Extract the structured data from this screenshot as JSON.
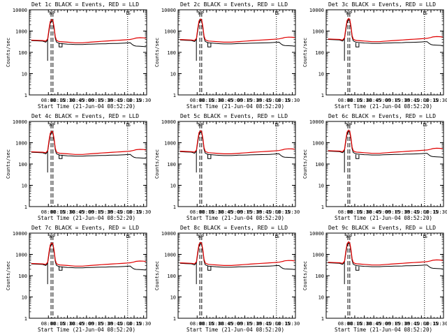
{
  "figure_title": "",
  "colors": {
    "events": "#000000",
    "lld": "#e00000",
    "axes": "#000000",
    "background": "#ffffff"
  },
  "chart_data": [
    {
      "type": "line",
      "title": "Det 1c BLACK = Events, RED = LLD",
      "xlabel": "Start Time (21-Jun-04 08:52:20)",
      "ylabel": "Counts/sec",
      "yscale": "log",
      "ylim": [
        1,
        10000
      ],
      "xlim": [
        7.5,
        10.58
      ],
      "xticks": [
        "08:00",
        "08:15",
        "08:30",
        "08:45",
        "09:00",
        "09:15",
        "09:30",
        "09:45",
        "10:00",
        "10:15",
        "10:30"
      ],
      "yticks": [
        "1",
        "10",
        "100",
        "1000",
        "10000"
      ],
      "flag_labels": [
        "N",
        "P",
        "D",
        "S"
      ],
      "series": [
        {
          "name": "Events",
          "color": "#000000"
        },
        {
          "name": "LLD",
          "color": "#e00000"
        }
      ]
    },
    {
      "type": "line",
      "title": "Det 2c BLACK = Events, RED = LLD",
      "xlabel": "Start Time (21-Jun-04 08:52:20)",
      "ylabel": "Counts/sec",
      "yscale": "log",
      "ylim": [
        1,
        10000
      ],
      "xlim": [
        7.5,
        10.58
      ],
      "xticks": [
        "08:00",
        "08:15",
        "08:30",
        "08:45",
        "09:00",
        "09:15",
        "09:30",
        "09:45",
        "10:00",
        "10:15",
        "10:30"
      ],
      "yticks": [
        "1",
        "10",
        "100",
        "1000",
        "10000"
      ],
      "flag_labels": [
        "N",
        "P",
        "D",
        "S"
      ],
      "series": [
        {
          "name": "Events",
          "color": "#000000"
        },
        {
          "name": "LLD",
          "color": "#e00000"
        }
      ]
    },
    {
      "type": "line",
      "title": "Det 3c BLACK = Events, RED = LLD",
      "xlabel": "Start Time (21-Jun-04 08:52:20)",
      "ylabel": "Counts/sec",
      "yscale": "log",
      "ylim": [
        1,
        10000
      ],
      "xlim": [
        7.5,
        10.58
      ],
      "xticks": [
        "08:00",
        "08:15",
        "08:30",
        "08:45",
        "09:00",
        "09:15",
        "09:30",
        "09:45",
        "10:00",
        "10:15",
        "10:30"
      ],
      "yticks": [
        "1",
        "10",
        "100",
        "1000",
        "10000"
      ],
      "flag_labels": [
        "N",
        "P",
        "D",
        "S"
      ],
      "series": [
        {
          "name": "Events",
          "color": "#000000"
        },
        {
          "name": "LLD",
          "color": "#e00000"
        }
      ]
    },
    {
      "type": "line",
      "title": "Det 4c BLACK = Events, RED = LLD",
      "xlabel": "Start Time (21-Jun-04 08:52:20)",
      "ylabel": "Counts/sec",
      "yscale": "log",
      "ylim": [
        1,
        10000
      ],
      "xlim": [
        7.5,
        10.58
      ],
      "xticks": [
        "08:00",
        "08:15",
        "08:30",
        "08:45",
        "09:00",
        "09:15",
        "09:30",
        "09:45",
        "10:00",
        "10:15",
        "10:30"
      ],
      "yticks": [
        "1",
        "10",
        "100",
        "1000",
        "10000"
      ],
      "flag_labels": [
        "N",
        "P",
        "D",
        "S"
      ],
      "series": [
        {
          "name": "Events",
          "color": "#000000"
        },
        {
          "name": "LLD",
          "color": "#e00000"
        }
      ]
    },
    {
      "type": "line",
      "title": "Det 5c BLACK = Events, RED = LLD",
      "xlabel": "Start Time (21-Jun-04 08:52:20)",
      "ylabel": "Counts/sec",
      "yscale": "log",
      "ylim": [
        1,
        10000
      ],
      "xlim": [
        7.5,
        10.58
      ],
      "xticks": [
        "08:00",
        "08:15",
        "08:30",
        "08:45",
        "09:00",
        "09:15",
        "09:30",
        "09:45",
        "10:00",
        "10:15",
        "10:30"
      ],
      "yticks": [
        "1",
        "10",
        "100",
        "1000",
        "10000"
      ],
      "flag_labels": [
        "N",
        "P",
        "D",
        "S"
      ],
      "series": [
        {
          "name": "Events",
          "color": "#000000"
        },
        {
          "name": "LLD",
          "color": "#e00000"
        }
      ]
    },
    {
      "type": "line",
      "title": "Det 6c BLACK = Events, RED = LLD",
      "xlabel": "Start Time (21-Jun-04 08:52:20)",
      "ylabel": "Counts/sec",
      "yscale": "log",
      "ylim": [
        1,
        10000
      ],
      "xlim": [
        7.5,
        10.58
      ],
      "xticks": [
        "08:00",
        "08:15",
        "08:30",
        "08:45",
        "09:00",
        "09:15",
        "09:30",
        "09:45",
        "10:00",
        "10:15",
        "10:30"
      ],
      "yticks": [
        "1",
        "10",
        "100",
        "1000",
        "10000"
      ],
      "flag_labels": [
        "N",
        "P",
        "D",
        "S"
      ],
      "series": [
        {
          "name": "Events",
          "color": "#000000"
        },
        {
          "name": "LLD",
          "color": "#e00000"
        }
      ]
    },
    {
      "type": "line",
      "title": "Det 7c BLACK = Events, RED = LLD",
      "xlabel": "Start Time (21-Jun-04 08:52:20)",
      "ylabel": "Counts/sec",
      "yscale": "log",
      "ylim": [
        1,
        10000
      ],
      "xlim": [
        7.5,
        10.58
      ],
      "xticks": [
        "08:00",
        "08:15",
        "08:30",
        "08:45",
        "09:00",
        "09:15",
        "09:30",
        "09:45",
        "10:00",
        "10:15",
        "10:30"
      ],
      "yticks": [
        "1",
        "10",
        "100",
        "1000",
        "10000"
      ],
      "flag_labels": [
        "N",
        "P",
        "D",
        "S"
      ],
      "series": [
        {
          "name": "Events",
          "color": "#000000"
        },
        {
          "name": "LLD",
          "color": "#e00000"
        }
      ]
    },
    {
      "type": "line",
      "title": "Det 8c BLACK = Events, RED = LLD",
      "xlabel": "Start Time (21-Jun-04 08:52:20)",
      "ylabel": "Counts/sec",
      "yscale": "log",
      "ylim": [
        1,
        10000
      ],
      "xlim": [
        7.5,
        10.58
      ],
      "xticks": [
        "08:00",
        "08:15",
        "08:30",
        "08:45",
        "09:00",
        "09:15",
        "09:30",
        "09:45",
        "10:00",
        "10:15",
        "10:30"
      ],
      "yticks": [
        "1",
        "10",
        "100",
        "1000",
        "10000"
      ],
      "flag_labels": [
        "N",
        "P",
        "D",
        "S"
      ],
      "series": [
        {
          "name": "Events",
          "color": "#000000"
        },
        {
          "name": "LLD",
          "color": "#e00000"
        }
      ]
    },
    {
      "type": "line",
      "title": "Det 9c BLACK = Events, RED = LLD",
      "xlabel": "Start Time (21-Jun-04 08:52:20)",
      "ylabel": "Counts/sec",
      "yscale": "log",
      "ylim": [
        1,
        10000
      ],
      "xlim": [
        7.5,
        10.58
      ],
      "xticks": [
        "08:00",
        "08:15",
        "08:30",
        "08:45",
        "09:00",
        "09:15",
        "09:30",
        "09:45",
        "10:00",
        "10:15",
        "10:30"
      ],
      "yticks": [
        "1",
        "10",
        "100",
        "1000",
        "10000"
      ],
      "flag_labels": [
        "N",
        "P",
        "D",
        "S"
      ],
      "series": [
        {
          "name": "Events",
          "color": "#000000"
        },
        {
          "name": "LLD",
          "color": "#e00000"
        }
      ]
    }
  ],
  "shared_series": {
    "time_hours": [
      7.55,
      7.7,
      7.85,
      7.93,
      7.98,
      8.02,
      8.05,
      8.09,
      8.12,
      8.15,
      8.18,
      8.21,
      8.25,
      8.3,
      8.4,
      8.5,
      8.6,
      8.7,
      8.8,
      8.9,
      9.0,
      9.1,
      9.2,
      9.3,
      9.4,
      9.5,
      9.6,
      9.7,
      9.8,
      9.9,
      10.0,
      10.08,
      10.15,
      10.2,
      10.25,
      10.3,
      10.4,
      10.5,
      10.56
    ],
    "events_counts": [
      380,
      370,
      360,
      320,
      400,
      1200,
      2500,
      3200,
      2800,
      1400,
      500,
      330,
      300,
      280,
      270,
      260,
      255,
      250,
      250,
      250,
      255,
      260,
      262,
      265,
      268,
      270,
      275,
      278,
      280,
      283,
      290,
      298,
      300,
      250,
      220,
      210,
      205,
      200,
      195
    ],
    "lld_counts": [
      400,
      390,
      380,
      360,
      450,
      1500,
      3000,
      3700,
      3300,
      1600,
      600,
      400,
      360,
      340,
      330,
      320,
      310,
      300,
      300,
      300,
      310,
      320,
      330,
      340,
      350,
      360,
      370,
      380,
      390,
      400,
      410,
      420,
      430,
      450,
      470,
      500,
      520,
      510,
      490
    ]
  }
}
